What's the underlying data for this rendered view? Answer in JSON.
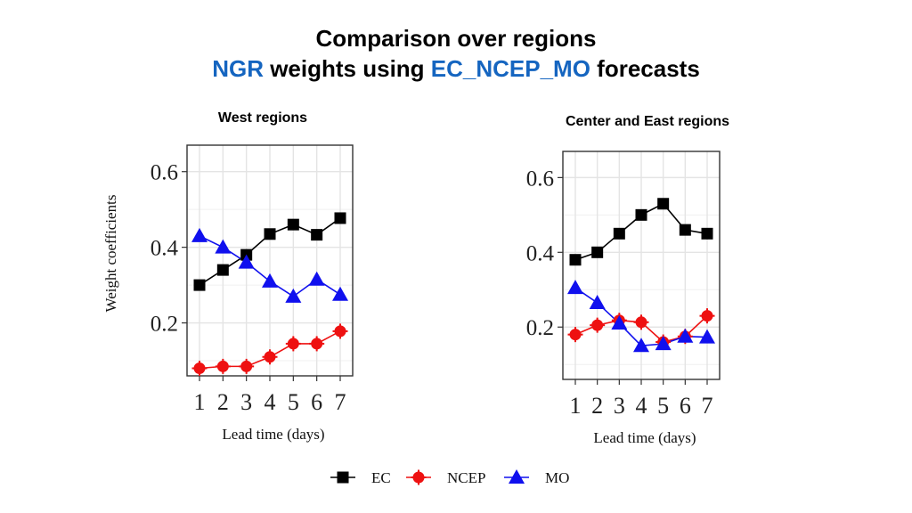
{
  "header": {
    "line1": "Comparison over regions",
    "line2_a": "NGR",
    "line2_b": " weights using ",
    "line2_c": "EC_NCEP_MO",
    "line2_d": " forecasts",
    "accent_color": "#1565c0"
  },
  "legend": {
    "items": [
      {
        "name": "EC",
        "color": "#000000",
        "marker": "square"
      },
      {
        "name": "NCEP",
        "color": "#ee1111",
        "marker": "circle"
      },
      {
        "name": "MO",
        "color": "#1010ee",
        "marker": "triangle"
      }
    ]
  },
  "chart_data": [
    {
      "type": "line",
      "title": "West regions",
      "xlabel": "Lead time (days)",
      "ylabel": "Weight coefficients",
      "x": [
        1,
        2,
        3,
        4,
        5,
        6,
        7
      ],
      "yticks": [
        "0.2",
        "0.4",
        "0.6"
      ],
      "ylim": [
        0.06,
        0.67
      ],
      "series": [
        {
          "name": "EC",
          "values": [
            0.3,
            0.34,
            0.38,
            0.435,
            0.46,
            0.433,
            0.477
          ]
        },
        {
          "name": "NCEP",
          "values": [
            0.08,
            0.085,
            0.085,
            0.11,
            0.145,
            0.145,
            0.178
          ]
        },
        {
          "name": "MO",
          "values": [
            0.43,
            0.4,
            0.36,
            0.31,
            0.27,
            0.315,
            0.275
          ]
        }
      ]
    },
    {
      "type": "line",
      "title": "Center and East regions",
      "xlabel": "Lead time (days)",
      "ylabel": "",
      "x": [
        1,
        2,
        3,
        4,
        5,
        6,
        7
      ],
      "yticks": [
        "0.2",
        "0.4",
        "0.6"
      ],
      "ylim": [
        0.06,
        0.67
      ],
      "series": [
        {
          "name": "EC",
          "values": [
            0.38,
            0.4,
            0.45,
            0.5,
            0.53,
            0.46,
            0.45
          ]
        },
        {
          "name": "NCEP",
          "values": [
            0.18,
            0.205,
            0.218,
            0.213,
            0.16,
            0.175,
            0.23
          ]
        },
        {
          "name": "MO",
          "values": [
            0.305,
            0.265,
            0.21,
            0.15,
            0.155,
            0.175,
            0.173
          ]
        }
      ]
    }
  ]
}
